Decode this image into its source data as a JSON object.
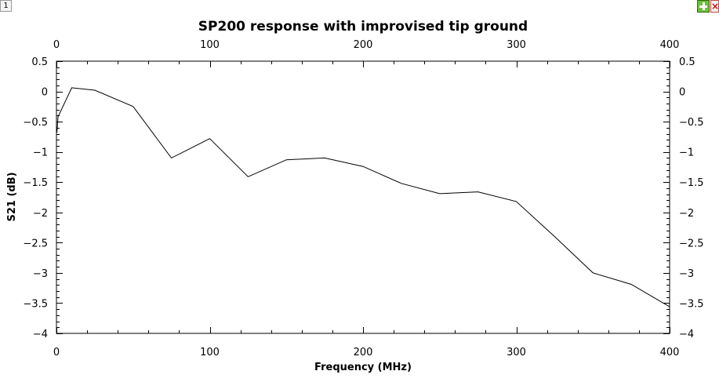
{
  "window": {
    "tab_label": "1",
    "close_glyph": "×"
  },
  "icons": {
    "zoom": "plus-icon",
    "close": "close-icon"
  },
  "chart_data": {
    "type": "line",
    "title": "SP200 response with improvised tip ground",
    "xlabel": "Frequency (MHz)",
    "ylabel": "S21 (dB)",
    "xlim": [
      0,
      400
    ],
    "ylim": [
      -4,
      0.5
    ],
    "x_ticks": [
      0,
      100,
      200,
      300,
      400
    ],
    "y_ticks": [
      0.5,
      0,
      -0.5,
      -1,
      -1.5,
      -2,
      -2.5,
      -3,
      -3.5,
      -4
    ],
    "y_tick_labels": [
      "0.5",
      "0",
      "−0.5",
      "−1",
      "−1.5",
      "−2",
      "−2.5",
      "−3",
      "−3.5",
      "−4"
    ],
    "grid": false,
    "line_color": "#000000",
    "series": [
      {
        "x": [
          0.3,
          1,
          10,
          25,
          50,
          75,
          100,
          125,
          150,
          175,
          200,
          225,
          250,
          275,
          300,
          325,
          350,
          375,
          400
        ],
        "values": [
          -0.68,
          -0.42,
          0.06,
          0.02,
          -0.25,
          -1.1,
          -0.78,
          -1.41,
          -1.13,
          -1.1,
          -1.24,
          -1.52,
          -1.69,
          -1.66,
          -1.82,
          -2.4,
          -3.0,
          -3.19,
          -3.56
        ]
      }
    ]
  }
}
